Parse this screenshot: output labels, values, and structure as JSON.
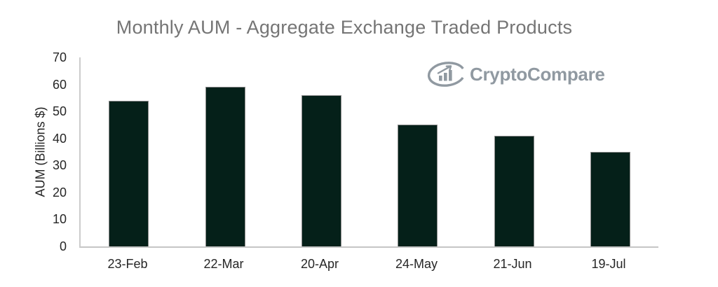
{
  "title": "Monthly AUM - Aggregate Exchange Traded Products",
  "watermark": {
    "brand": "CryptoCompare"
  },
  "y_axis": {
    "title": "AUM (Billions $)",
    "tick_labels": [
      "0",
      "10",
      "20",
      "30",
      "40",
      "50",
      "60",
      "70"
    ]
  },
  "colors": {
    "bar_fill": "#052019",
    "bar_border": "#8a8a8a",
    "axis_line": "#cccccc",
    "axis_text": "#262626",
    "title_text": "#757575",
    "logo_gray": "#9099a1",
    "background": "#ffffff"
  },
  "chart_data": {
    "type": "bar",
    "categories": [
      "23-Feb",
      "22-Mar",
      "20-Apr",
      "24-May",
      "21-Jun",
      "19-Jul"
    ],
    "values": [
      54,
      59,
      56,
      45,
      41,
      35
    ],
    "title": "Monthly AUM - Aggregate Exchange Traded Products",
    "xlabel": "",
    "ylabel": "AUM (Billions $)",
    "ylim": [
      0,
      70
    ],
    "ytick_step": 10,
    "grid": false,
    "legend": false,
    "bar_color": "#052019"
  }
}
